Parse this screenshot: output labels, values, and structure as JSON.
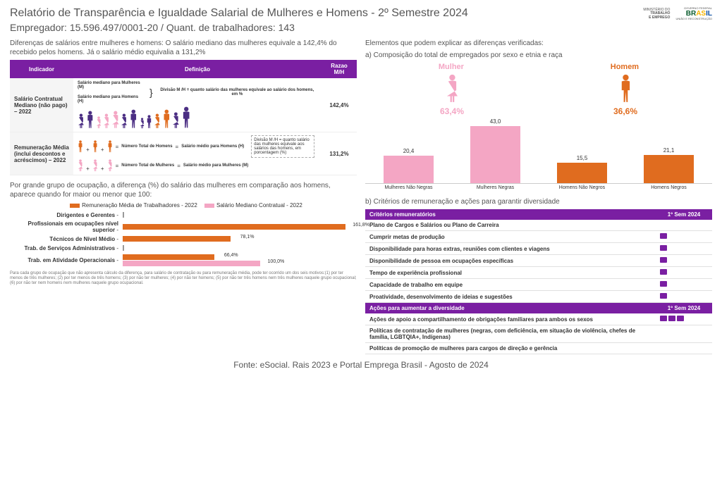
{
  "header": {
    "title": "Relatório de Transparência e Igualdade Salarial de Mulheres e Homens - 2º Semestre 2024",
    "subtitle": "Empregador: 15.596.497/0001-20    /    Quant. de trabalhadores: 143",
    "ministry_line1": "MINISTÉRIO DO",
    "ministry_line2": "TRABALHO",
    "ministry_line3": "E EMPREGO",
    "gov_line1": "GOVERNO FEDERAL",
    "gov_line2": "UNIÃO E RECONSTRUÇÃO"
  },
  "colors": {
    "purple": "#7a1fa2",
    "pink": "#f4a6c4",
    "orange": "#e06c1f",
    "dark_purple": "#4b2e83",
    "mulher": "#f4a6c4",
    "homem": "#e06c1f"
  },
  "left_top": {
    "intro": "Diferenças de salários entre mulheres e homens: O salário mediano das mulheres equivale a 142,4% do recebido pelos homens. Já o salário médio equivalia a 131,2%",
    "th_ind": "Indicador",
    "th_def": "Definição",
    "th_ratio": "Razao M/H",
    "row1_ind": "Salário Contratual Mediano (não pago) – 2022",
    "row1_lbl1": "Salário mediano para Mulheres (M)",
    "row1_lbl2": "Salário mediano para Homens (H)",
    "row1_formula": "Divisão M /H = quanto salário das mulheres equivale ao salário dos homens, em %",
    "row1_ratio": "142,4%",
    "row2_ind": "Remuneração Média (inclui descontos e acréscimos) – 2022",
    "row2_h_lbl1": "Número Total de Homens",
    "row2_h_lbl2": "Salário médio para Homens (H)",
    "row2_m_lbl1": "Número Total de Mulheres",
    "row2_m_lbl2": "Salário médio para Mulheres (M)",
    "row2_formula": "Divisão M /H = quanto salário das mulheres equivale aos salários das homens, em porcentagem (%)",
    "row2_ratio": "131,2%"
  },
  "right_top": {
    "intro": "Elementos que podem explicar as diferenças verificadas:",
    "sub": "a) Composição do total de empregados por sexo e etnia e raça",
    "mulher_label": "Mulher",
    "homem_label": "Homem",
    "mulher_pct": "63,4%",
    "homem_pct": "36,6%",
    "bars": [
      {
        "label": "Mulheres Não Negras",
        "value": 20.4,
        "display": "20,4",
        "color": "#f4a6c4"
      },
      {
        "label": "Mulheres Negras",
        "value": 43.0,
        "display": "43,0",
        "color": "#f4a6c4"
      },
      {
        "label": "Homens Não Negros",
        "value": 15.5,
        "display": "15,5",
        "color": "#e06c1f"
      },
      {
        "label": "Homens Negros",
        "value": 21.1,
        "display": "21,1",
        "color": "#e06c1f"
      }
    ],
    "max": 45
  },
  "left_bottom": {
    "intro": "Por grande grupo de ocupação, a diferença (%) do salário das mulheres em comparação aos homens, aparece quando for maior ou menor que 100:",
    "legend_a": "Remuneração Média de Trabalhadores - 2022",
    "legend_b": "Salário Mediano Contratual - 2022",
    "color_a": "#e06c1f",
    "color_b": "#f4a6c4",
    "max": 170,
    "rows": [
      {
        "label": "Dirigentes e Gerentes",
        "a": null,
        "b": null
      },
      {
        "label": "Profissionais em ocupações nível superior",
        "a": 161.8,
        "a_disp": "161,8%",
        "b": null
      },
      {
        "label": "Técnicos de Nível Médio",
        "a": 78.1,
        "a_disp": "78,1%",
        "b": null
      },
      {
        "label": "Trab. de Serviços Administrativos",
        "a": null,
        "b": null
      },
      {
        "label": "Trab. em Atividade Operacionais",
        "a": 66.4,
        "a_disp": "66,4%",
        "b": 100.0,
        "b_disp": "100,0%"
      }
    ],
    "footnote": "Para cada grupo de ocupação que não apresenta cálculo da diferença, para salário de contratação ou para remuneração média, pode ter ocorrido um dos seis motivos:(1) por ter menos de três mulheres; (2) por ter menos de três homens; (3) por não ter mulheres; (4) por não ter homens; (5) por não ter três homens nem três mulheres naquele grupo ocupacional; (6) por não ter nem homens nem mulheres naquele grupo ocupacional."
  },
  "right_bottom": {
    "intro": "b) Critérios de remuneração e ações para garantir diversidade",
    "th1": "Critérios remuneratórios",
    "th2": "1º Sem 2024",
    "rows1": [
      {
        "t": "Plano de Cargos e Salários ou Plano de Carreira",
        "i": 0
      },
      {
        "t": "Cumprir metas de produção",
        "i": 1
      },
      {
        "t": "Disponibilidade para horas extras, reuniões com clientes e viagens",
        "i": 1
      },
      {
        "t": "Disponibilidade de pessoa em ocupações específicas",
        "i": 1
      },
      {
        "t": "Tempo de experiência profissional",
        "i": 1
      },
      {
        "t": "Capacidade de trabalho em equipe",
        "i": 1
      },
      {
        "t": "Proatividade, desenvolvimento de ideias e sugestões",
        "i": 1
      }
    ],
    "th3": "Ações para aumentar a diversidade",
    "th4": "1º Sem 2024",
    "rows2": [
      {
        "t": "Ações de apoio a compartilhamento de obrigações familiares para ambos os sexos",
        "i": 3
      },
      {
        "t": "Políticas de contratação de mulheres (negras, com deficiência, em situação de violência, chefes de família, LGBTQIA+, Indígenas)",
        "i": 0
      },
      {
        "t": "Políticas de promoção de mulheres para cargos de direção e gerência",
        "i": 0
      }
    ]
  },
  "source": "Fonte: eSocial. Rais 2023 e Portal Emprega Brasil - Agosto de 2024"
}
